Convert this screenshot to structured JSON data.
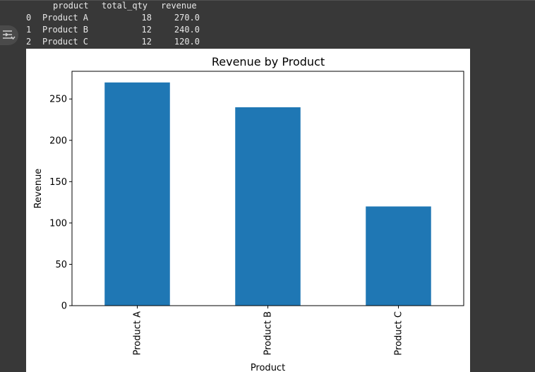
{
  "output": {
    "dataframe": {
      "columns": [
        "product",
        "total_qty",
        "revenue"
      ],
      "rows": [
        {
          "index": "0",
          "product": "Product A",
          "total_qty": "18",
          "revenue": "270.0"
        },
        {
          "index": "1",
          "product": "Product B",
          "total_qty": "12",
          "revenue": "240.0"
        },
        {
          "index": "2",
          "product": "Product C",
          "total_qty": "12",
          "revenue": "120.0"
        }
      ]
    },
    "toggle_icon": "output-toggle-icon"
  },
  "chart_data": {
    "type": "bar",
    "title": "Revenue by Product",
    "xlabel": "Product",
    "ylabel": "Revenue",
    "categories": [
      "Product A",
      "Product B",
      "Product C"
    ],
    "values": [
      270.0,
      240.0,
      120.0
    ],
    "ylim": [
      0,
      283.5
    ],
    "yticks": [
      0,
      50,
      100,
      150,
      200,
      250
    ],
    "bar_color": "#1f77b4",
    "grid": false,
    "legend": false,
    "xtick_rotation": 90
  }
}
